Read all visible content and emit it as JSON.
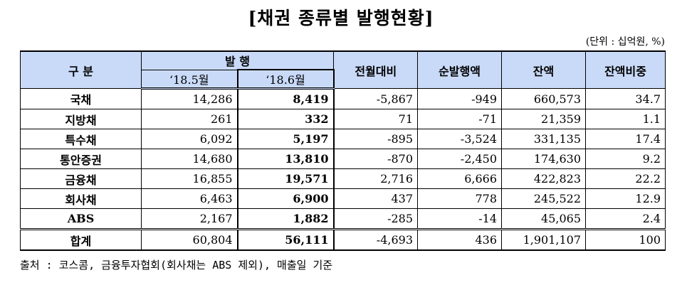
{
  "title": "[채권 종류별 발행현황]",
  "unit": "(단위 : 십억원, %)",
  "headers": {
    "category": "구   분",
    "issuance": "발   행",
    "may": "‘18.5월",
    "jun": "‘18.6월",
    "mom": "전월대비",
    "net": "순발행액",
    "balance": "잔액",
    "share": "잔액비중"
  },
  "rows": [
    {
      "name": "국채",
      "may": "14,286",
      "jun": "8,419",
      "mom": "-5,867",
      "net": "-949",
      "balance": "660,573",
      "share": "34.7"
    },
    {
      "name": "지방채",
      "may": "261",
      "jun": "332",
      "mom": "71",
      "net": "-71",
      "balance": "21,359",
      "share": "1.1"
    },
    {
      "name": "특수채",
      "may": "6,092",
      "jun": "5,197",
      "mom": "-895",
      "net": "-3,524",
      "balance": "331,135",
      "share": "17.4"
    },
    {
      "name": "통안증권",
      "may": "14,680",
      "jun": "13,810",
      "mom": "-870",
      "net": "-2,450",
      "balance": "174,630",
      "share": "9.2"
    },
    {
      "name": "금융채",
      "may": "16,855",
      "jun": "19,571",
      "mom": "2,716",
      "net": "6,666",
      "balance": "422,823",
      "share": "22.2"
    },
    {
      "name": "회사채",
      "may": "6,463",
      "jun": "6,900",
      "mom": "437",
      "net": "778",
      "balance": "245,522",
      "share": "12.9"
    },
    {
      "name": "ABS",
      "may": "2,167",
      "jun": "1,882",
      "mom": "-285",
      "net": "-14",
      "balance": "45,065",
      "share": "2.4"
    }
  ],
  "total": {
    "name": "합계",
    "may": "60,804",
    "jun": "56,111",
    "mom": "-4,693",
    "net": "436",
    "balance": "1,901,107",
    "share": "100"
  },
  "source": "출처 : 코스콤, 금융투자협회(회사채는 ABS 제외), 매출일 기준"
}
